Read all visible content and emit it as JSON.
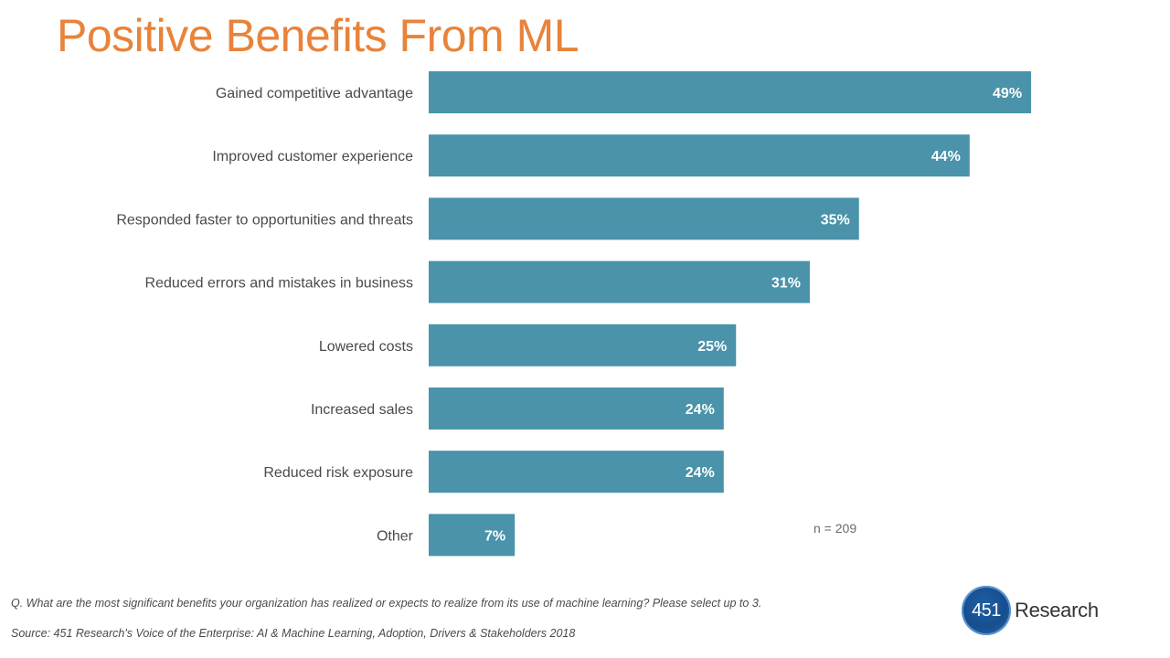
{
  "title": "Positive Benefits From ML",
  "chart_data": {
    "type": "bar",
    "orientation": "horizontal",
    "title": "Positive Benefits From ML",
    "categories": [
      "Gained competitive advantage",
      "Improved customer experience",
      "Responded faster to opportunities and threats",
      "Reduced errors and mistakes in business",
      "Lowered costs",
      "Increased sales",
      "Reduced risk exposure",
      "Other"
    ],
    "values": [
      49,
      44,
      35,
      31,
      25,
      24,
      24,
      7
    ],
    "value_labels": [
      "49%",
      "44%",
      "35%",
      "31%",
      "25%",
      "24%",
      "24%",
      "7%"
    ],
    "unit": "%",
    "xlim": [
      0,
      60
    ],
    "grid": false,
    "bar_color": "#4a93aa"
  },
  "note": "n = 209",
  "question": "Q. What are the most significant benefits your organization has realized or expects to realize from its use of machine learning? Please select up to 3.",
  "source": "Source: 451 Research's Voice of the Enterprise: AI & Machine Learning, Adoption, Drivers & Stakeholders 2018",
  "logo": {
    "number": "451",
    "word": "Research",
    "icon": "451-research-logo-icon"
  },
  "colors": {
    "title": "#e8833a",
    "bar": "#4a93aa"
  }
}
